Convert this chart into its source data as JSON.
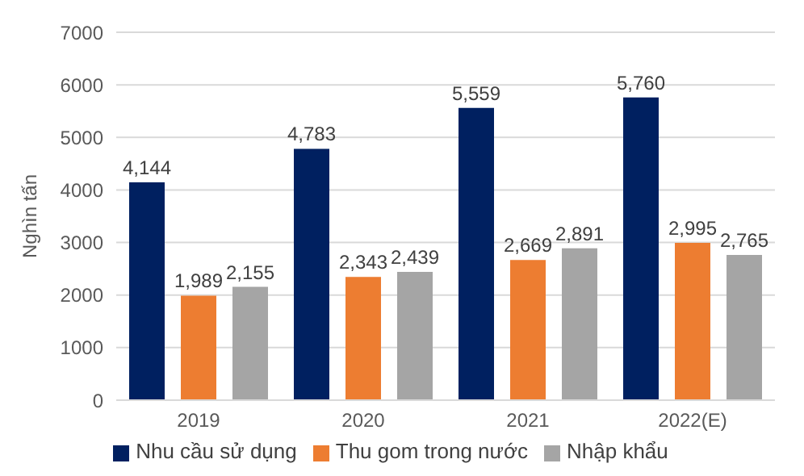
{
  "chart_data": {
    "type": "bar",
    "ylabel": "Nghìn tấn",
    "categories": [
      "2019",
      "2020",
      "2021",
      "2022(E)"
    ],
    "series": [
      {
        "name": "Nhu cầu sử dụng",
        "color": "#002060",
        "values": [
          4144,
          4783,
          5559,
          5760
        ],
        "value_labels": [
          "4,144",
          "4,783",
          "5,559",
          "5,760"
        ]
      },
      {
        "name": "Thu gom trong nước",
        "color": "#ed7d31",
        "values": [
          1989,
          2343,
          2669,
          2995
        ],
        "value_labels": [
          "1,989",
          "2,343",
          "2,669",
          "2,995"
        ]
      },
      {
        "name": "Nhập khẩu",
        "color": "#a5a5a5",
        "values": [
          2155,
          2439,
          2891,
          2765
        ],
        "value_labels": [
          "2,155",
          "2,439",
          "2,891",
          "2,765"
        ]
      }
    ],
    "ylim": [
      0,
      7000
    ],
    "yticks": [
      0,
      1000,
      2000,
      3000,
      4000,
      5000,
      6000,
      7000
    ],
    "grid": "y",
    "legend": "bottom"
  }
}
